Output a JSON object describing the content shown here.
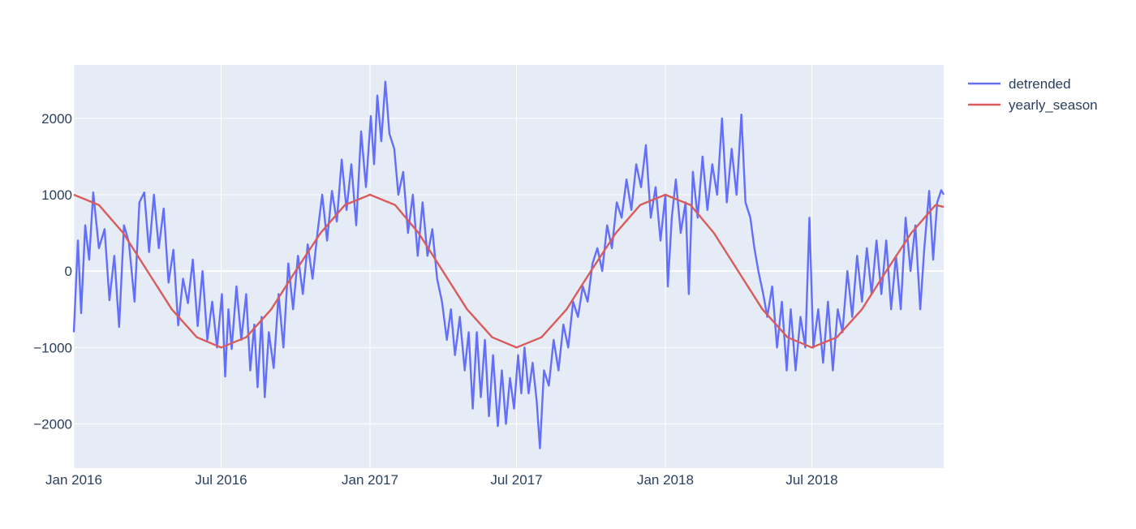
{
  "chart_data": {
    "type": "line",
    "xlim": [
      "2016-01-01",
      "2018-12-11"
    ],
    "ylim": [
      -2580,
      2700
    ],
    "grid": true,
    "legend_position": "top-right",
    "x_ticks": [
      {
        "date": "2016-01-01",
        "label": "Jan 2016"
      },
      {
        "date": "2016-07-01",
        "label": "Jul 2016"
      },
      {
        "date": "2017-01-01",
        "label": "Jan 2017"
      },
      {
        "date": "2017-07-01",
        "label": "Jul 2017"
      },
      {
        "date": "2018-01-01",
        "label": "Jan 2018"
      },
      {
        "date": "2018-07-01",
        "label": "Jul 2018"
      }
    ],
    "y_ticks": [
      {
        "value": 2000,
        "label": "2000"
      },
      {
        "value": 1000,
        "label": "1000"
      },
      {
        "value": 0,
        "label": "0"
      },
      {
        "value": -1000,
        "label": "−1000"
      },
      {
        "value": -2000,
        "label": "−2000"
      }
    ],
    "series": [
      {
        "name": "detrended",
        "color": "#636efa",
        "points": [
          [
            "2016-01-01",
            -800
          ],
          [
            "2016-01-06",
            400
          ],
          [
            "2016-01-10",
            -550
          ],
          [
            "2016-01-15",
            600
          ],
          [
            "2016-01-20",
            150
          ],
          [
            "2016-01-25",
            1030
          ],
          [
            "2016-02-01",
            300
          ],
          [
            "2016-02-08",
            550
          ],
          [
            "2016-02-14",
            -380
          ],
          [
            "2016-02-20",
            200
          ],
          [
            "2016-02-26",
            -730
          ],
          [
            "2016-03-03",
            600
          ],
          [
            "2016-03-09",
            380
          ],
          [
            "2016-03-16",
            -400
          ],
          [
            "2016-03-22",
            900
          ],
          [
            "2016-03-28",
            1030
          ],
          [
            "2016-04-03",
            250
          ],
          [
            "2016-04-09",
            1000
          ],
          [
            "2016-04-15",
            300
          ],
          [
            "2016-04-21",
            820
          ],
          [
            "2016-04-27",
            -150
          ],
          [
            "2016-05-03",
            280
          ],
          [
            "2016-05-09",
            -710
          ],
          [
            "2016-05-15",
            -100
          ],
          [
            "2016-05-21",
            -420
          ],
          [
            "2016-05-27",
            150
          ],
          [
            "2016-06-02",
            -720
          ],
          [
            "2016-06-08",
            0
          ],
          [
            "2016-06-14",
            -900
          ],
          [
            "2016-06-20",
            -400
          ],
          [
            "2016-06-26",
            -1000
          ],
          [
            "2016-07-02",
            -300
          ],
          [
            "2016-07-06",
            -1380
          ],
          [
            "2016-07-10",
            -500
          ],
          [
            "2016-07-14",
            -1020
          ],
          [
            "2016-07-20",
            -200
          ],
          [
            "2016-07-26",
            -900
          ],
          [
            "2016-08-01",
            -300
          ],
          [
            "2016-08-06",
            -1300
          ],
          [
            "2016-08-11",
            -700
          ],
          [
            "2016-08-15",
            -1520
          ],
          [
            "2016-08-20",
            -600
          ],
          [
            "2016-08-24",
            -1650
          ],
          [
            "2016-08-29",
            -800
          ],
          [
            "2016-09-04",
            -1270
          ],
          [
            "2016-09-10",
            -300
          ],
          [
            "2016-09-16",
            -1000
          ],
          [
            "2016-09-22",
            100
          ],
          [
            "2016-09-28",
            -500
          ],
          [
            "2016-10-04",
            200
          ],
          [
            "2016-10-10",
            -300
          ],
          [
            "2016-10-16",
            350
          ],
          [
            "2016-10-22",
            -100
          ],
          [
            "2016-10-28",
            500
          ],
          [
            "2016-11-03",
            1000
          ],
          [
            "2016-11-09",
            400
          ],
          [
            "2016-11-15",
            1050
          ],
          [
            "2016-11-21",
            650
          ],
          [
            "2016-11-27",
            1460
          ],
          [
            "2016-12-03",
            800
          ],
          [
            "2016-12-09",
            1400
          ],
          [
            "2016-12-15",
            600
          ],
          [
            "2016-12-21",
            1830
          ],
          [
            "2016-12-27",
            1100
          ],
          [
            "2017-01-02",
            2030
          ],
          [
            "2017-01-06",
            1400
          ],
          [
            "2017-01-10",
            2300
          ],
          [
            "2017-01-15",
            1700
          ],
          [
            "2017-01-20",
            2480
          ],
          [
            "2017-01-25",
            1800
          ],
          [
            "2017-01-31",
            1600
          ],
          [
            "2017-02-05",
            1000
          ],
          [
            "2017-02-11",
            1300
          ],
          [
            "2017-02-17",
            500
          ],
          [
            "2017-02-23",
            1000
          ],
          [
            "2017-03-01",
            200
          ],
          [
            "2017-03-07",
            900
          ],
          [
            "2017-03-13",
            200
          ],
          [
            "2017-03-19",
            550
          ],
          [
            "2017-03-25",
            -100
          ],
          [
            "2017-03-31",
            -400
          ],
          [
            "2017-04-06",
            -900
          ],
          [
            "2017-04-11",
            -500
          ],
          [
            "2017-04-16",
            -1100
          ],
          [
            "2017-04-22",
            -600
          ],
          [
            "2017-04-28",
            -1300
          ],
          [
            "2017-05-03",
            -800
          ],
          [
            "2017-05-08",
            -1800
          ],
          [
            "2017-05-13",
            -800
          ],
          [
            "2017-05-18",
            -1650
          ],
          [
            "2017-05-23",
            -900
          ],
          [
            "2017-05-28",
            -1900
          ],
          [
            "2017-06-02",
            -1100
          ],
          [
            "2017-06-08",
            -2030
          ],
          [
            "2017-06-13",
            -1300
          ],
          [
            "2017-06-18",
            -2000
          ],
          [
            "2017-06-23",
            -1400
          ],
          [
            "2017-06-28",
            -1800
          ],
          [
            "2017-07-03",
            -1100
          ],
          [
            "2017-07-07",
            -1600
          ],
          [
            "2017-07-11",
            -1000
          ],
          [
            "2017-07-16",
            -1600
          ],
          [
            "2017-07-21",
            -1200
          ],
          [
            "2017-07-26",
            -1700
          ],
          [
            "2017-07-30",
            -2320
          ],
          [
            "2017-08-04",
            -1300
          ],
          [
            "2017-08-10",
            -1500
          ],
          [
            "2017-08-16",
            -900
          ],
          [
            "2017-08-22",
            -1300
          ],
          [
            "2017-08-28",
            -700
          ],
          [
            "2017-09-03",
            -1000
          ],
          [
            "2017-09-09",
            -400
          ],
          [
            "2017-09-15",
            -600
          ],
          [
            "2017-09-21",
            -200
          ],
          [
            "2017-09-27",
            -400
          ],
          [
            "2017-10-03",
            100
          ],
          [
            "2017-10-09",
            300
          ],
          [
            "2017-10-15",
            0
          ],
          [
            "2017-10-21",
            600
          ],
          [
            "2017-10-27",
            300
          ],
          [
            "2017-11-02",
            900
          ],
          [
            "2017-11-08",
            700
          ],
          [
            "2017-11-14",
            1200
          ],
          [
            "2017-11-20",
            800
          ],
          [
            "2017-11-26",
            1400
          ],
          [
            "2017-12-02",
            1100
          ],
          [
            "2017-12-08",
            1650
          ],
          [
            "2017-12-14",
            700
          ],
          [
            "2017-12-20",
            1100
          ],
          [
            "2017-12-26",
            400
          ],
          [
            "2018-01-01",
            1000
          ],
          [
            "2018-01-04",
            -200
          ],
          [
            "2018-01-09",
            700
          ],
          [
            "2018-01-14",
            1200
          ],
          [
            "2018-01-20",
            500
          ],
          [
            "2018-01-26",
            900
          ],
          [
            "2018-01-30",
            -300
          ],
          [
            "2018-02-04",
            1300
          ],
          [
            "2018-02-10",
            700
          ],
          [
            "2018-02-16",
            1500
          ],
          [
            "2018-02-22",
            800
          ],
          [
            "2018-02-28",
            1400
          ],
          [
            "2018-03-06",
            1000
          ],
          [
            "2018-03-12",
            2000
          ],
          [
            "2018-03-18",
            900
          ],
          [
            "2018-03-24",
            1600
          ],
          [
            "2018-03-30",
            1000
          ],
          [
            "2018-04-05",
            2050
          ],
          [
            "2018-04-10",
            900
          ],
          [
            "2018-04-16",
            700
          ],
          [
            "2018-04-21",
            300
          ],
          [
            "2018-04-26",
            0
          ],
          [
            "2018-05-02",
            -300
          ],
          [
            "2018-05-07",
            -600
          ],
          [
            "2018-05-13",
            -200
          ],
          [
            "2018-05-19",
            -1000
          ],
          [
            "2018-05-25",
            -400
          ],
          [
            "2018-05-31",
            -1300
          ],
          [
            "2018-06-05",
            -500
          ],
          [
            "2018-06-11",
            -1300
          ],
          [
            "2018-06-17",
            -600
          ],
          [
            "2018-06-23",
            -1000
          ],
          [
            "2018-06-28",
            700
          ],
          [
            "2018-07-03",
            -1000
          ],
          [
            "2018-07-09",
            -500
          ],
          [
            "2018-07-15",
            -1200
          ],
          [
            "2018-07-21",
            -400
          ],
          [
            "2018-07-27",
            -1300
          ],
          [
            "2018-08-02",
            -500
          ],
          [
            "2018-08-08",
            -800
          ],
          [
            "2018-08-14",
            0
          ],
          [
            "2018-08-20",
            -600
          ],
          [
            "2018-08-26",
            200
          ],
          [
            "2018-09-01",
            -400
          ],
          [
            "2018-09-07",
            300
          ],
          [
            "2018-09-13",
            -300
          ],
          [
            "2018-09-19",
            400
          ],
          [
            "2018-09-25",
            -300
          ],
          [
            "2018-10-01",
            400
          ],
          [
            "2018-10-07",
            -500
          ],
          [
            "2018-10-13",
            200
          ],
          [
            "2018-10-19",
            -500
          ],
          [
            "2018-10-25",
            700
          ],
          [
            "2018-10-31",
            0
          ],
          [
            "2018-11-06",
            600
          ],
          [
            "2018-11-12",
            -500
          ],
          [
            "2018-11-17",
            300
          ],
          [
            "2018-11-23",
            1050
          ],
          [
            "2018-11-28",
            150
          ],
          [
            "2018-12-03",
            900
          ],
          [
            "2018-12-08",
            1060
          ],
          [
            "2018-12-11",
            1000
          ]
        ]
      },
      {
        "name": "yearly_season",
        "color": "#d95b5b",
        "points": [
          [
            "2016-01-01",
            1000
          ],
          [
            "2016-02-01",
            866
          ],
          [
            "2016-03-02",
            500
          ],
          [
            "2016-04-01",
            0
          ],
          [
            "2016-05-01",
            -500
          ],
          [
            "2016-06-01",
            -866
          ],
          [
            "2016-07-01",
            -1000
          ],
          [
            "2016-08-01",
            -866
          ],
          [
            "2016-09-01",
            -500
          ],
          [
            "2016-10-01",
            0
          ],
          [
            "2016-11-01",
            500
          ],
          [
            "2016-12-01",
            866
          ],
          [
            "2017-01-01",
            1000
          ],
          [
            "2017-02-01",
            866
          ],
          [
            "2017-03-02",
            500
          ],
          [
            "2017-04-01",
            0
          ],
          [
            "2017-05-01",
            -500
          ],
          [
            "2017-06-01",
            -866
          ],
          [
            "2017-07-01",
            -1000
          ],
          [
            "2017-08-01",
            -866
          ],
          [
            "2017-09-01",
            -500
          ],
          [
            "2017-10-01",
            0
          ],
          [
            "2017-11-01",
            500
          ],
          [
            "2017-12-01",
            866
          ],
          [
            "2018-01-01",
            1000
          ],
          [
            "2018-02-01",
            866
          ],
          [
            "2018-03-02",
            500
          ],
          [
            "2018-04-01",
            0
          ],
          [
            "2018-05-01",
            -500
          ],
          [
            "2018-06-01",
            -866
          ],
          [
            "2018-07-01",
            -1000
          ],
          [
            "2018-08-01",
            -866
          ],
          [
            "2018-09-01",
            -500
          ],
          [
            "2018-10-01",
            0
          ],
          [
            "2018-11-01",
            500
          ],
          [
            "2018-12-01",
            866
          ],
          [
            "2018-12-11",
            840
          ]
        ]
      }
    ]
  }
}
